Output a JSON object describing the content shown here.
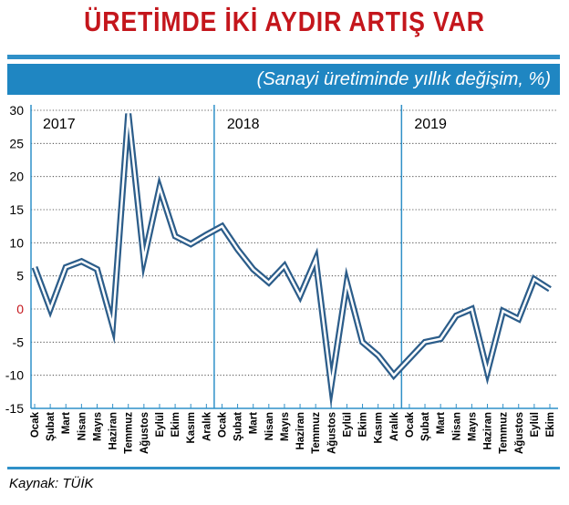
{
  "title": "ÜRETİMDE İKİ AYDIR ARTIŞ VAR",
  "subtitle": "(Sanayi üretiminde yıllık değişim, %)",
  "source": "Kaynak: TÜİK",
  "colors": {
    "title": "#c4161c",
    "accent": "#1f86c2",
    "line_outer": "#2c5d8a",
    "line_inner": "#ffffff"
  },
  "chart_data": {
    "type": "line",
    "title": "ÜRETİMDE İKİ AYDIR ARTIŞ VAR",
    "subtitle": "(Sanayi üretiminde yıllık değişim, %)",
    "ylim": [
      -15,
      30
    ],
    "yticks": [
      30,
      25,
      20,
      15,
      10,
      5,
      0,
      -5,
      -10,
      -15
    ],
    "zero_tick_color": "#c4161c",
    "years": [
      {
        "label": "2017",
        "start_index": 0
      },
      {
        "label": "2018",
        "start_index": 12
      },
      {
        "label": "2019",
        "start_index": 24
      }
    ],
    "categories": [
      "Ocak",
      "Şubat",
      "Mart",
      "Nisan",
      "Mayıs",
      "Haziran",
      "Temmuz",
      "Ağustos",
      "Eylül",
      "Ekim",
      "Kasım",
      "Aralık",
      "Ocak",
      "Şubat",
      "Mart",
      "Nisan",
      "Mayıs",
      "Haziran",
      "Temmuz",
      "Ağustos",
      "Eylül",
      "Ekim",
      "Kasım",
      "Aralık",
      "Ocak",
      "Şubat",
      "Mart",
      "Nisan",
      "Mayıs",
      "Haziran",
      "Temmuz",
      "Ağustos",
      "Eylül",
      "Ekim"
    ],
    "values": [
      6.3,
      0.0,
      6.3,
      7.2,
      6.0,
      -2.5,
      29.5,
      7.5,
      18.3,
      11.0,
      9.8,
      11.2,
      12.5,
      9.0,
      6.0,
      4.0,
      6.5,
      2.0,
      7.5,
      -11.5,
      4.0,
      -5.0,
      -7.0,
      -10.0,
      -7.5,
      -5.0,
      -4.5,
      -1.0,
      0.0,
      -9.5,
      -0.3,
      -1.5,
      4.5,
      3.0
    ]
  }
}
